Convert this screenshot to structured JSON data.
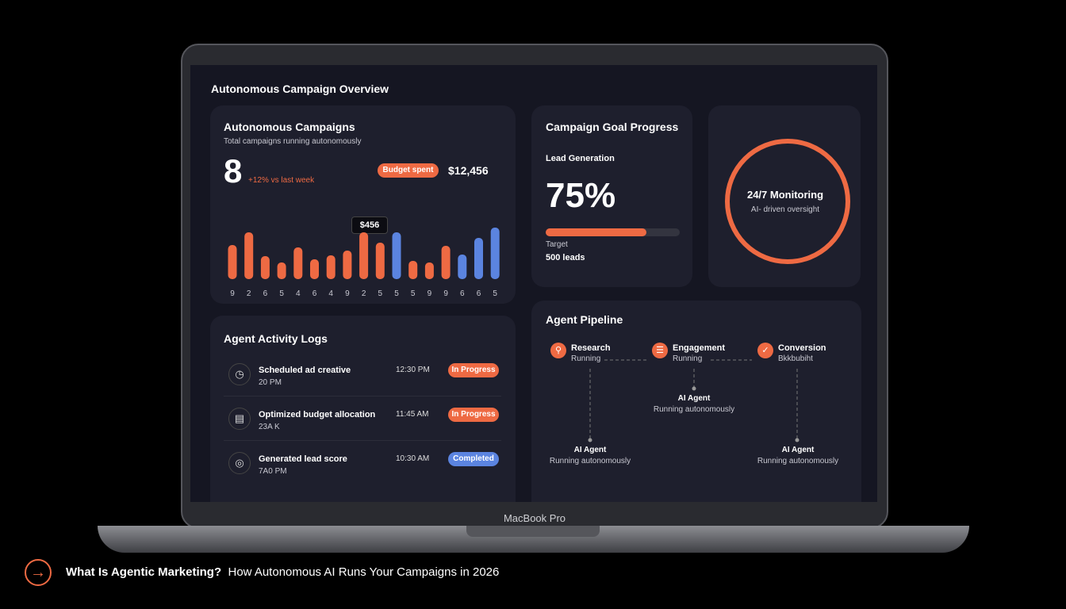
{
  "header": {
    "title": "Autonomous Campaign Overview"
  },
  "campaigns": {
    "title": "Autonomous Campaigns",
    "subtitle": "Total campaigns running autonomously",
    "count": 8,
    "change": "+12% vs last week",
    "budget_label": "Budget spent",
    "budget": "$12,456"
  },
  "chart_data": {
    "type": "bar",
    "categories": [
      "9",
      "2",
      "6",
      "5",
      "4",
      "6",
      "4",
      "9",
      "2",
      "5",
      "5",
      "5",
      "9",
      "9",
      "6",
      "6",
      "5"
    ],
    "values": [
      43,
      59,
      29,
      21,
      40,
      25,
      30,
      36,
      59,
      46,
      59,
      23,
      21,
      42,
      31,
      52,
      65
    ],
    "colors": [
      "#ee6a43",
      "#ee6a43",
      "#ee6a43",
      "#ee6a43",
      "#ee6a43",
      "#ee6a43",
      "#ee6a43",
      "#ee6a43",
      "#ee6a43",
      "#ee6a43",
      "#5b84e0",
      "#ee6a43",
      "#ee6a43",
      "#ee6a43",
      "#5b84e0",
      "#5b84e0",
      "#5b84e0"
    ],
    "tooltip": "$456"
  },
  "goal": {
    "title": "Campaign Goal Progress",
    "metric": "Lead Generation",
    "value": 75,
    "value_label": "75%",
    "target_label": "Target",
    "target": "500 leads"
  },
  "monitoring": {
    "title": "24/7 Monitoring",
    "subtitle": "AI- driven oversight"
  },
  "logs": {
    "title": "Agent Activity Logs",
    "items": [
      {
        "text": "Scheduled ad creative",
        "sub": "20 PM",
        "time": "12:30 PM",
        "status": "In Progress"
      },
      {
        "text": "Optimized budget allocation",
        "sub": "23A K",
        "time": "11:45 AM",
        "status": "In Progress"
      },
      {
        "text": "Generated lead score",
        "sub": "7A0 PM",
        "time": "10:30 AM",
        "status": "Completed"
      }
    ]
  },
  "pipeline": {
    "title": "Agent Pipeline",
    "stages": [
      {
        "name": "Research",
        "status": "Running"
      },
      {
        "name": "Engagement",
        "status": "Running"
      },
      {
        "name": "Conversion",
        "status": "Bkkbubiht"
      }
    ],
    "agents": [
      {
        "name": "AI Agent",
        "status": "Running autonomously"
      },
      {
        "name": "AI Agent",
        "status": "Running autonomously"
      },
      {
        "name": "AI Agent",
        "status": "Running autonomously"
      }
    ]
  },
  "device": "MacBook Pro",
  "footer": {
    "bold": "What Is Agentic Marketing?",
    "rest": "How Autonomous AI Runs Your Campaigns in 2026"
  }
}
